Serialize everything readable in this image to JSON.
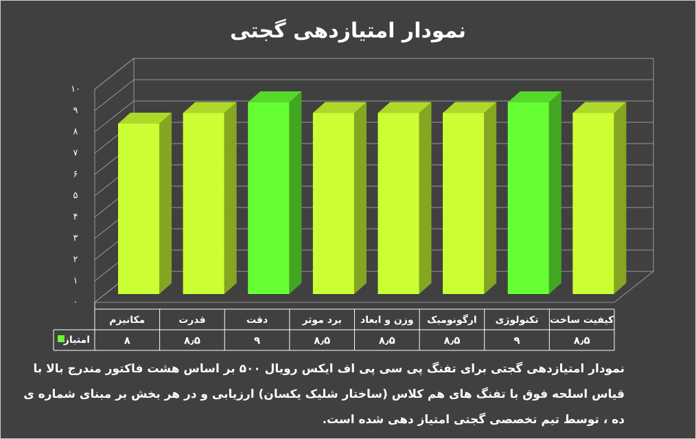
{
  "chart_data": {
    "type": "bar3d",
    "title": "نمودار امتیازدهی گجتی",
    "categories": [
      "مکانیزم",
      "قدرت",
      "دقت",
      "برد موثر",
      "وزن و ابعاد",
      "ارگونومیک",
      "تکنولوژی",
      "کیفیت ساخت"
    ],
    "series": [
      {
        "name": "امتیاز",
        "color": "#66ff33",
        "values": [
          8,
          8.5,
          9,
          8.5,
          8.5,
          8.5,
          9,
          8.5
        ],
        "value_labels": [
          "۸",
          "۸٫۵",
          "۹",
          "۸٫۵",
          "۸٫۵",
          "۸٫۵",
          "۹",
          "۸٫۵"
        ],
        "colors": [
          "#ccff33",
          "#ccff33",
          "#66ff33",
          "#ccff33",
          "#ccff33",
          "#ccff33",
          "#66ff33",
          "#ccff33"
        ]
      }
    ],
    "ylim": [
      0,
      10
    ],
    "yticks": [
      {
        "value": 0,
        "label": "۰"
      },
      {
        "value": 1,
        "label": "۱"
      },
      {
        "value": 2,
        "label": "۲"
      },
      {
        "value": 3,
        "label": "۳"
      },
      {
        "value": 4,
        "label": "۴"
      },
      {
        "value": 5,
        "label": "۵"
      },
      {
        "value": 6,
        "label": "۶"
      },
      {
        "value": 7,
        "label": "۷"
      },
      {
        "value": 8,
        "label": "۸"
      },
      {
        "value": 9,
        "label": "۹"
      },
      {
        "value": 10,
        "label": "۱۰"
      }
    ],
    "grid": true,
    "caption": [
      "نمودار امتیازدهی گجتی برای تفنگ پی سی پی اف ایکس رویال ۵۰۰  بر اساس هشت فاکتور مندرج بالا با",
      "قیاس اسلحه فوق با تفنگ های هم کلاس (ساختار شلیک یکسان) ارزیابی و در هر بخش بر مبنای شماره ی",
      "ده ، توسط تیم تخصصی گجتی امتیاز دهی شده است."
    ]
  }
}
